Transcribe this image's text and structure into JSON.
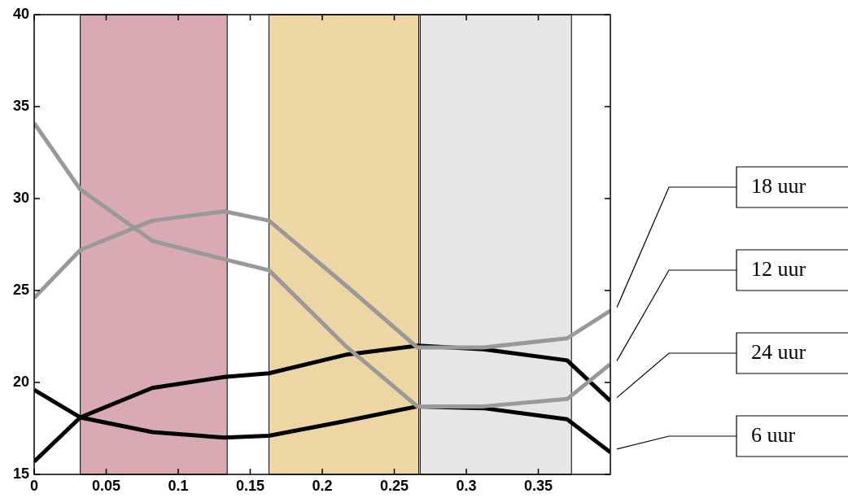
{
  "chart_data": {
    "type": "line",
    "xlim": [
      0,
      0.4
    ],
    "xticks": [
      0,
      0.05,
      0.1,
      0.15,
      0.2,
      0.25,
      0.3,
      0.35
    ],
    "ylim": [
      15,
      40
    ],
    "yticks": [
      15,
      20,
      25,
      30,
      35,
      40
    ],
    "grid": false,
    "legend": false,
    "marker": "none",
    "line_style": "solid",
    "bands": [
      {
        "axis": "x",
        "from": 0.032,
        "to": 0.134,
        "color": "#d9aab2"
      },
      {
        "axis": "x",
        "from": 0.163,
        "to": 0.267,
        "color": "#eed5a4"
      },
      {
        "axis": "x",
        "from": 0.268,
        "to": 0.373,
        "color": "#e6e6e6"
      }
    ],
    "series": [
      {
        "name": "18 uur",
        "color": "#999999",
        "x": [
          0,
          0.032,
          0.082,
          0.132,
          0.163,
          0.216,
          0.266,
          0.312,
          0.37,
          0.4
        ],
        "values": [
          24.6,
          27.2,
          28.8,
          29.3,
          28.8,
          25.3,
          21.9,
          21.9,
          22.4,
          23.9
        ]
      },
      {
        "name": "12 uur",
        "color": "#999999",
        "x": [
          0,
          0.032,
          0.082,
          0.132,
          0.163,
          0.216,
          0.266,
          0.312,
          0.37,
          0.4
        ],
        "values": [
          34.1,
          30.5,
          27.7,
          26.7,
          26.1,
          22.0,
          18.7,
          18.7,
          19.1,
          21.0
        ]
      },
      {
        "name": "24 uur",
        "color": "#000000",
        "x": [
          0,
          0.032,
          0.082,
          0.132,
          0.163,
          0.216,
          0.266,
          0.312,
          0.37,
          0.4
        ],
        "values": [
          15.7,
          18.1,
          19.7,
          20.3,
          20.5,
          21.5,
          22.0,
          21.8,
          21.2,
          19.0
        ]
      },
      {
        "name": "6 uur",
        "color": "#000000",
        "x": [
          0,
          0.032,
          0.082,
          0.132,
          0.163,
          0.216,
          0.266,
          0.312,
          0.37,
          0.4
        ],
        "values": [
          19.6,
          18.1,
          17.3,
          17.0,
          17.1,
          17.9,
          18.7,
          18.6,
          18.0,
          16.2
        ]
      }
    ]
  }
}
